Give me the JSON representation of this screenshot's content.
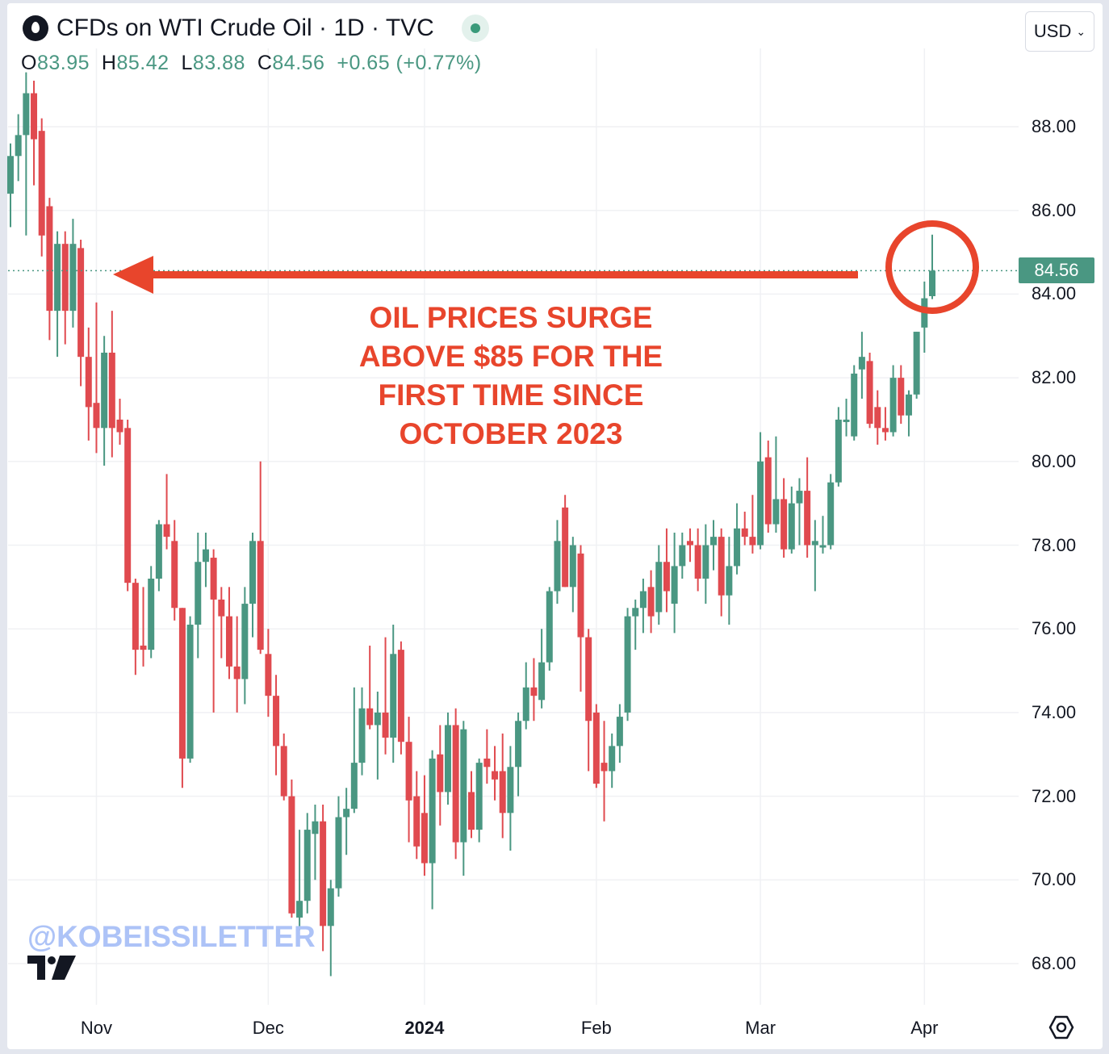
{
  "header": {
    "title": "CFDs on WTI Crude Oil · 1D · TVC",
    "ohlc": {
      "o_label": "O",
      "o": "83.95",
      "h_label": "H",
      "h": "85.42",
      "l_label": "L",
      "l": "83.88",
      "c_label": "C",
      "c": "84.56",
      "change": "+0.65 (+0.77%)"
    },
    "currency": "USD"
  },
  "annotation": {
    "lines": [
      "OIL PRICES SURGE",
      "ABOVE $85 FOR THE",
      "FIRST TIME SINCE",
      "OCTOBER 2023"
    ]
  },
  "watermark": "@KOBEISSILETTER",
  "colors": {
    "up": "#4a9782",
    "down": "#e04a4f",
    "annotation": "#e8452c"
  },
  "chart_data": {
    "type": "candlestick",
    "title": "CFDs on WTI Crude Oil · 1D · TVC",
    "ylim": [
      67.6,
      89.9
    ],
    "y_ticks": [
      "88.00",
      "86.00",
      "84.00",
      "82.00",
      "80.00",
      "78.00",
      "76.00",
      "74.00",
      "72.00",
      "70.00",
      "68.00"
    ],
    "y_tick_values": [
      88,
      86,
      84,
      82,
      80,
      78,
      76,
      74,
      72,
      70,
      68
    ],
    "x_ticks": [
      {
        "label": "Nov",
        "index": 11,
        "bold": false
      },
      {
        "label": "Dec",
        "index": 33,
        "bold": false
      },
      {
        "label": "2024",
        "index": 53,
        "bold": true
      },
      {
        "label": "Feb",
        "index": 75,
        "bold": false
      },
      {
        "label": "Mar",
        "index": 96,
        "bold": false
      },
      {
        "label": "Apr",
        "index": 117,
        "bold": false
      }
    ],
    "last_price": "84.56",
    "last_price_value": 84.56,
    "candles_ohlc": [
      [
        86.4,
        87.6,
        85.6,
        87.3
      ],
      [
        87.3,
        88.3,
        86.7,
        87.8
      ],
      [
        87.8,
        89.3,
        85.4,
        88.8
      ],
      [
        88.8,
        89.1,
        86.6,
        87.7
      ],
      [
        87.9,
        88.2,
        84.9,
        85.4
      ],
      [
        86.1,
        86.3,
        82.9,
        83.6
      ],
      [
        83.6,
        85.5,
        82.5,
        85.2
      ],
      [
        85.2,
        85.5,
        82.8,
        83.6
      ],
      [
        83.6,
        85.8,
        83.2,
        85.2
      ],
      [
        85.1,
        85.3,
        81.8,
        82.5
      ],
      [
        82.5,
        83.2,
        80.5,
        81.3
      ],
      [
        81.4,
        83.8,
        80.2,
        80.8
      ],
      [
        80.8,
        83.0,
        79.9,
        82.6
      ],
      [
        82.6,
        83.6,
        80.1,
        80.8
      ],
      [
        81.0,
        81.5,
        80.4,
        80.7
      ],
      [
        80.8,
        81.0,
        76.9,
        77.1
      ],
      [
        77.1,
        77.2,
        74.9,
        75.5
      ],
      [
        75.6,
        77.0,
        75.1,
        75.5
      ],
      [
        75.5,
        77.5,
        75.3,
        77.2
      ],
      [
        77.2,
        78.6,
        76.9,
        78.5
      ],
      [
        78.5,
        79.7,
        77.9,
        78.2
      ],
      [
        78.1,
        78.6,
        76.2,
        76.5
      ],
      [
        76.5,
        76.5,
        72.2,
        72.9
      ],
      [
        72.9,
        76.3,
        72.8,
        76.1
      ],
      [
        76.1,
        78.3,
        75.3,
        77.6
      ],
      [
        77.6,
        78.3,
        77.0,
        77.9
      ],
      [
        77.7,
        77.9,
        74.0,
        76.7
      ],
      [
        76.7,
        77.0,
        75.3,
        76.3
      ],
      [
        76.3,
        77.0,
        74.8,
        75.1
      ],
      [
        75.1,
        76.3,
        74.0,
        74.8
      ],
      [
        74.8,
        77.0,
        74.2,
        76.6
      ],
      [
        76.6,
        78.3,
        75.8,
        78.1
      ],
      [
        78.1,
        80.0,
        75.4,
        75.5
      ],
      [
        75.4,
        76.0,
        73.9,
        74.4
      ],
      [
        74.4,
        74.9,
        72.5,
        73.2
      ],
      [
        73.2,
        73.5,
        71.9,
        72.0
      ],
      [
        72.0,
        72.4,
        69.1,
        69.2
      ],
      [
        69.1,
        71.2,
        68.8,
        69.5
      ],
      [
        69.5,
        71.6,
        69.2,
        71.2
      ],
      [
        71.1,
        71.8,
        70.0,
        71.4
      ],
      [
        71.4,
        71.8,
        68.3,
        68.9
      ],
      [
        68.9,
        70.0,
        67.7,
        69.8
      ],
      [
        69.8,
        72.0,
        69.6,
        71.5
      ],
      [
        71.5,
        72.2,
        70.6,
        71.7
      ],
      [
        71.7,
        74.6,
        71.6,
        72.8
      ],
      [
        72.8,
        74.6,
        72.5,
        74.1
      ],
      [
        74.1,
        75.6,
        73.6,
        73.7
      ],
      [
        73.7,
        74.5,
        72.4,
        74.0
      ],
      [
        74.0,
        75.8,
        73.0,
        73.4
      ],
      [
        73.4,
        76.1,
        72.8,
        75.4
      ],
      [
        75.5,
        75.7,
        73.0,
        73.3
      ],
      [
        73.3,
        73.9,
        70.9,
        71.9
      ],
      [
        72.0,
        72.6,
        70.5,
        70.8
      ],
      [
        71.6,
        72.5,
        70.1,
        70.4
      ],
      [
        70.4,
        73.1,
        69.3,
        72.9
      ],
      [
        73.0,
        73.7,
        71.3,
        72.1
      ],
      [
        72.1,
        74.0,
        71.8,
        73.7
      ],
      [
        73.7,
        74.1,
        70.5,
        70.9
      ],
      [
        70.9,
        73.8,
        70.1,
        73.6
      ],
      [
        72.1,
        72.6,
        71.0,
        71.2
      ],
      [
        71.2,
        72.9,
        70.9,
        72.8
      ],
      [
        72.9,
        73.6,
        72.3,
        72.7
      ],
      [
        72.6,
        73.2,
        71.9,
        72.4
      ],
      [
        72.6,
        73.5,
        71.0,
        71.6
      ],
      [
        71.6,
        73.2,
        70.7,
        72.7
      ],
      [
        72.7,
        74.0,
        72.0,
        73.8
      ],
      [
        73.8,
        75.2,
        73.6,
        74.6
      ],
      [
        74.6,
        75.3,
        73.8,
        74.4
      ],
      [
        74.3,
        76.0,
        74.1,
        75.2
      ],
      [
        75.2,
        77.0,
        75.0,
        76.9
      ],
      [
        76.9,
        78.6,
        76.6,
        78.1
      ],
      [
        78.9,
        79.2,
        77.0,
        77.0
      ],
      [
        77.0,
        78.2,
        76.4,
        78.0
      ],
      [
        77.8,
        78.0,
        74.5,
        75.8
      ],
      [
        75.8,
        76.0,
        72.6,
        73.8
      ],
      [
        74.0,
        74.2,
        72.2,
        72.3
      ],
      [
        72.8,
        73.8,
        71.4,
        72.6
      ],
      [
        72.6,
        73.5,
        72.2,
        73.2
      ],
      [
        73.2,
        74.2,
        72.8,
        73.9
      ],
      [
        74.0,
        76.5,
        73.8,
        76.3
      ],
      [
        76.3,
        76.7,
        75.5,
        76.5
      ],
      [
        76.5,
        77.2,
        75.9,
        76.9
      ],
      [
        77.0,
        77.4,
        75.9,
        76.3
      ],
      [
        76.4,
        78.0,
        76.1,
        77.6
      ],
      [
        77.6,
        78.4,
        76.4,
        76.9
      ],
      [
        76.6,
        78.3,
        75.9,
        77.5
      ],
      [
        77.5,
        78.3,
        77.2,
        78.0
      ],
      [
        78.1,
        78.4,
        77.6,
        78.0
      ],
      [
        78.0,
        78.4,
        76.9,
        77.2
      ],
      [
        77.2,
        78.5,
        76.6,
        78.0
      ],
      [
        78.0,
        78.6,
        77.4,
        78.2
      ],
      [
        78.2,
        78.4,
        76.3,
        76.8
      ],
      [
        76.8,
        78.2,
        76.1,
        77.5
      ],
      [
        77.5,
        79.0,
        77.3,
        78.4
      ],
      [
        78.4,
        78.8,
        78.0,
        78.2
      ],
      [
        78.2,
        79.2,
        77.8,
        78.0
      ],
      [
        78.0,
        80.7,
        77.9,
        80.0
      ],
      [
        80.1,
        80.5,
        78.3,
        78.5
      ],
      [
        78.5,
        80.6,
        78.3,
        79.1
      ],
      [
        79.1,
        79.6,
        77.7,
        77.9
      ],
      [
        77.9,
        79.4,
        77.8,
        79.0
      ],
      [
        79.0,
        79.6,
        78.0,
        79.3
      ],
      [
        79.3,
        80.1,
        77.7,
        78.0
      ],
      [
        78.0,
        78.6,
        76.9,
        78.1
      ],
      [
        78.0,
        78.7,
        77.8,
        78.0
      ],
      [
        78.0,
        79.7,
        77.9,
        79.5
      ],
      [
        79.5,
        81.3,
        79.4,
        81.0
      ],
      [
        81.0,
        81.5,
        80.6,
        81.0
      ],
      [
        80.6,
        82.3,
        80.5,
        82.1
      ],
      [
        82.2,
        83.1,
        81.5,
        82.5
      ],
      [
        82.4,
        82.6,
        80.8,
        80.9
      ],
      [
        81.3,
        81.7,
        80.4,
        80.8
      ],
      [
        80.8,
        81.3,
        80.5,
        80.7
      ],
      [
        80.7,
        82.3,
        80.6,
        82.0
      ],
      [
        82.0,
        82.3,
        80.9,
        81.1
      ],
      [
        81.1,
        81.7,
        80.6,
        81.6
      ],
      [
        81.6,
        83.1,
        81.5,
        83.1
      ],
      [
        83.2,
        84.3,
        82.6,
        83.9
      ],
      [
        83.95,
        85.42,
        83.88,
        84.56
      ]
    ]
  }
}
